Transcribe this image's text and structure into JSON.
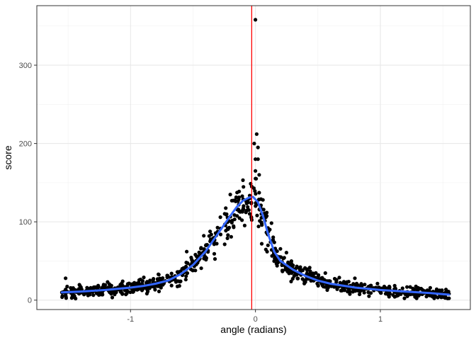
{
  "chart_data": {
    "type": "scatter",
    "title": "",
    "xlabel": "angle (radians)",
    "ylabel": "score",
    "xlim": [
      -1.75,
      1.72
    ],
    "ylim": [
      -12,
      376
    ],
    "x_ticks": [
      -1,
      0,
      1
    ],
    "x_tick_labels": [
      "-1",
      "0",
      "1"
    ],
    "x_minor_ticks": [
      -1.5,
      -0.5,
      0.5,
      1.5
    ],
    "y_ticks": [
      0,
      100,
      200,
      300
    ],
    "y_tick_labels": [
      "0",
      "100",
      "200",
      "300"
    ],
    "y_minor_ticks": [
      50,
      150,
      250,
      350
    ],
    "grid": true,
    "theme": "bw",
    "vline": {
      "x": -0.03,
      "color": "#ff0000"
    },
    "smooth": {
      "color": "#3366ff",
      "x": [
        -1.55,
        -1.4,
        -1.2,
        -1.0,
        -0.9,
        -0.8,
        -0.7,
        -0.6,
        -0.5,
        -0.4,
        -0.3,
        -0.2,
        -0.15,
        -0.1,
        -0.05,
        -0.02,
        0.02,
        0.06,
        0.1,
        0.15,
        0.2,
        0.3,
        0.4,
        0.5,
        0.6,
        0.8,
        1.0,
        1.2,
        1.4,
        1.55
      ],
      "y": [
        10,
        11,
        13,
        16,
        18,
        21,
        25,
        33,
        45,
        62,
        85,
        108,
        119,
        127,
        131,
        132,
        125,
        108,
        85,
        62,
        50,
        39,
        31,
        25,
        21,
        16,
        13,
        11,
        9,
        7
      ]
    },
    "points_seed": 7,
    "points_count": 900,
    "outliers": [
      {
        "x": 0.0,
        "y": 358
      },
      {
        "x": 0.01,
        "y": 212
      },
      {
        "x": -0.01,
        "y": 200
      },
      {
        "x": 0.02,
        "y": 195
      },
      {
        "x": 0.0,
        "y": 180
      },
      {
        "x": 0.02,
        "y": 180
      },
      {
        "x": 0.0,
        "y": 165
      },
      {
        "x": 0.03,
        "y": 160
      },
      {
        "x": -0.03,
        "y": 145
      },
      {
        "x": 0.06,
        "y": 128
      },
      {
        "x": -0.55,
        "y": 62
      },
      {
        "x": -1.52,
        "y": 28
      },
      {
        "x": 0.05,
        "y": 72
      },
      {
        "x": 0.1,
        "y": 70
      }
    ],
    "point_color": "#000000"
  }
}
